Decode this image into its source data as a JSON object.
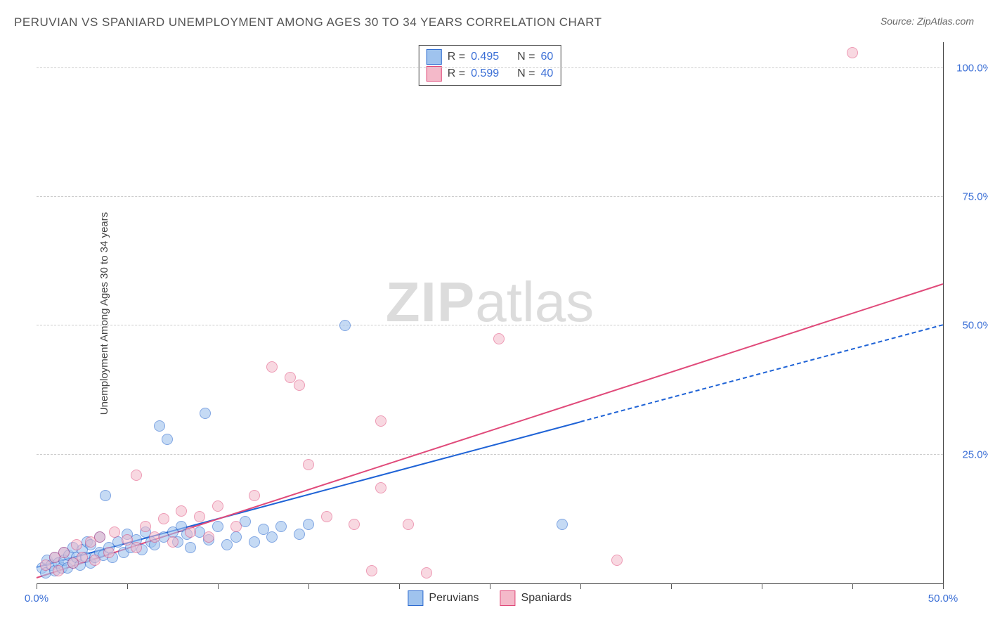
{
  "title": "PERUVIAN VS SPANIARD UNEMPLOYMENT AMONG AGES 30 TO 34 YEARS CORRELATION CHART",
  "source_label": "Source: ZipAtlas.com",
  "y_axis_label": "Unemployment Among Ages 30 to 34 years",
  "watermark": {
    "part1": "ZIP",
    "part2": "atlas"
  },
  "chart": {
    "type": "scatter",
    "background_color": "#ffffff",
    "grid_color": "#cccccc",
    "axis_color": "#444444",
    "tick_label_color": "#3b6fd6",
    "tick_label_fontsize": 15,
    "xlim": [
      0,
      50
    ],
    "ylim": [
      0,
      105
    ],
    "x_tick_step": 5,
    "x_tick_labels": [
      {
        "x": 0,
        "label": "0.0%"
      },
      {
        "x": 50,
        "label": "50.0%"
      }
    ],
    "y_ticks": [
      {
        "y": 25,
        "label": "25.0%"
      },
      {
        "y": 50,
        "label": "50.0%"
      },
      {
        "y": 75,
        "label": "75.0%"
      },
      {
        "y": 100,
        "label": "100.0%"
      }
    ],
    "marker_radius": 8,
    "marker_border_width": 1.5,
    "series": [
      {
        "name": "Peruvians",
        "fill": "#9fc3ee",
        "stroke": "#2d6bd0",
        "fill_opacity": 0.6,
        "R": "0.495",
        "N": "60",
        "trend": {
          "color": "#1f63d6",
          "width": 2.5,
          "solid_x_range": [
            0,
            30
          ],
          "dash_x_range": [
            30,
            50
          ],
          "intercept": 3.0,
          "slope": 0.94
        },
        "points": [
          [
            0.3,
            3.0
          ],
          [
            0.5,
            2.0
          ],
          [
            0.6,
            4.5
          ],
          [
            0.8,
            3.5
          ],
          [
            1.0,
            5.0
          ],
          [
            1.0,
            2.5
          ],
          [
            1.2,
            4.0
          ],
          [
            1.4,
            3.0
          ],
          [
            1.5,
            6.0
          ],
          [
            1.5,
            4.5
          ],
          [
            1.7,
            3.0
          ],
          [
            1.8,
            5.5
          ],
          [
            2.0,
            4.0
          ],
          [
            2.0,
            7.0
          ],
          [
            2.2,
            5.0
          ],
          [
            2.4,
            3.5
          ],
          [
            2.5,
            6.5
          ],
          [
            2.7,
            5.0
          ],
          [
            2.8,
            8.0
          ],
          [
            3.0,
            4.0
          ],
          [
            3.0,
            7.5
          ],
          [
            3.2,
            5.0
          ],
          [
            3.5,
            6.0
          ],
          [
            3.5,
            9.0
          ],
          [
            3.7,
            5.5
          ],
          [
            3.8,
            17.0
          ],
          [
            4.0,
            7.0
          ],
          [
            4.2,
            5.0
          ],
          [
            4.5,
            8.0
          ],
          [
            4.8,
            6.0
          ],
          [
            5.0,
            9.5
          ],
          [
            5.2,
            7.0
          ],
          [
            5.5,
            8.5
          ],
          [
            5.8,
            6.5
          ],
          [
            6.0,
            10.0
          ],
          [
            6.3,
            8.0
          ],
          [
            6.5,
            7.5
          ],
          [
            6.8,
            30.5
          ],
          [
            7.0,
            9.0
          ],
          [
            7.2,
            28.0
          ],
          [
            7.5,
            10.0
          ],
          [
            7.8,
            8.0
          ],
          [
            8.0,
            11.0
          ],
          [
            8.3,
            9.5
          ],
          [
            8.5,
            7.0
          ],
          [
            9.0,
            10.0
          ],
          [
            9.3,
            33.0
          ],
          [
            9.5,
            8.5
          ],
          [
            10.0,
            11.0
          ],
          [
            10.5,
            7.5
          ],
          [
            11.0,
            9.0
          ],
          [
            11.5,
            12.0
          ],
          [
            12.0,
            8.0
          ],
          [
            12.5,
            10.5
          ],
          [
            13.0,
            9.0
          ],
          [
            13.5,
            11.0
          ],
          [
            17.0,
            50.0
          ],
          [
            14.5,
            9.5
          ],
          [
            15.0,
            11.5
          ],
          [
            29.0,
            11.5
          ]
        ]
      },
      {
        "name": "Spaniards",
        "fill": "#f4b9c9",
        "stroke": "#e04a7a",
        "fill_opacity": 0.55,
        "R": "0.599",
        "N": "40",
        "trend": {
          "color": "#e04a7a",
          "width": 2.5,
          "solid_x_range": [
            0,
            50
          ],
          "dash_x_range": null,
          "intercept": 1.0,
          "slope": 1.14
        },
        "points": [
          [
            0.5,
            3.5
          ],
          [
            1.0,
            5.0
          ],
          [
            1.2,
            2.5
          ],
          [
            1.5,
            6.0
          ],
          [
            2.0,
            4.0
          ],
          [
            2.2,
            7.5
          ],
          [
            2.5,
            5.0
          ],
          [
            3.0,
            8.0
          ],
          [
            3.2,
            4.5
          ],
          [
            3.5,
            9.0
          ],
          [
            4.0,
            6.0
          ],
          [
            4.3,
            10.0
          ],
          [
            5.5,
            21.0
          ],
          [
            5.0,
            8.5
          ],
          [
            5.5,
            7.0
          ],
          [
            6.0,
            11.0
          ],
          [
            6.5,
            9.0
          ],
          [
            7.0,
            12.5
          ],
          [
            7.5,
            8.0
          ],
          [
            8.0,
            14.0
          ],
          [
            8.5,
            10.0
          ],
          [
            9.0,
            13.0
          ],
          [
            9.5,
            9.0
          ],
          [
            10.0,
            15.0
          ],
          [
            11.0,
            11.0
          ],
          [
            12.0,
            17.0
          ],
          [
            13.0,
            42.0
          ],
          [
            14.0,
            40.0
          ],
          [
            14.5,
            38.5
          ],
          [
            15.0,
            23.0
          ],
          [
            16.0,
            13.0
          ],
          [
            17.5,
            11.5
          ],
          [
            19.0,
            31.5
          ],
          [
            19.0,
            18.5
          ],
          [
            18.5,
            2.5
          ],
          [
            20.5,
            11.5
          ],
          [
            21.5,
            2.0
          ],
          [
            25.5,
            47.5
          ],
          [
            32.0,
            4.5
          ],
          [
            45.0,
            103.0
          ]
        ]
      }
    ],
    "stats_box": {
      "border_color": "#555555",
      "fontsize": 16,
      "label_color": "#444444",
      "value_color": "#3b6fd6"
    },
    "legend": {
      "fontsize": 16,
      "items": [
        {
          "label": "Peruvians",
          "fill": "#9fc3ee",
          "stroke": "#2d6bd0"
        },
        {
          "label": "Spaniards",
          "fill": "#f4b9c9",
          "stroke": "#e04a7a"
        }
      ]
    }
  }
}
